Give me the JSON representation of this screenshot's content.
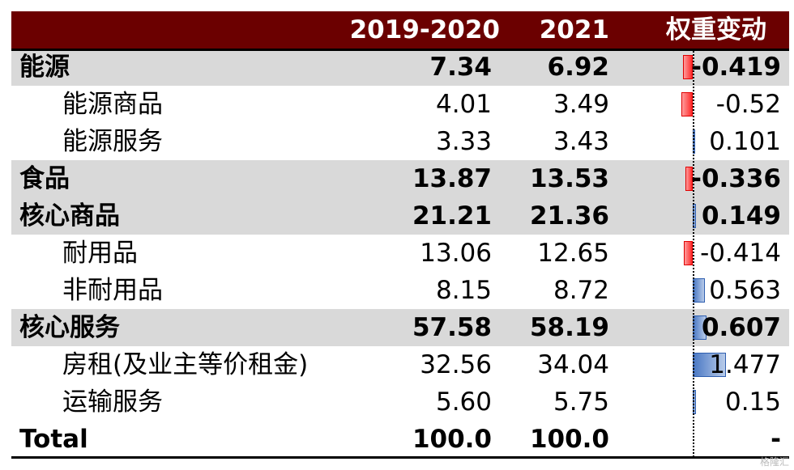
{
  "header": {
    "col1": "2019-2020",
    "col2": "2021",
    "col3": "权重变动"
  },
  "watermark": "格隆汇",
  "chart_data": {
    "type": "table",
    "columns": [
      "2019-2020",
      "2021",
      "权重变动"
    ],
    "rows": [
      {
        "name": "能源",
        "v1": "7.34",
        "v2": "6.92",
        "change": -0.419,
        "change_label": "-0.419",
        "level": "main",
        "shaded": true
      },
      {
        "name": "能源商品",
        "v1": "4.01",
        "v2": "3.49",
        "change": -0.52,
        "change_label": "-0.52",
        "level": "sub",
        "shaded": false
      },
      {
        "name": "能源服务",
        "v1": "3.33",
        "v2": "3.43",
        "change": 0.101,
        "change_label": "0.101",
        "level": "sub",
        "shaded": false
      },
      {
        "name": "食品",
        "v1": "13.87",
        "v2": "13.53",
        "change": -0.336,
        "change_label": "-0.336",
        "level": "main",
        "shaded": true
      },
      {
        "name": "核心商品",
        "v1": "21.21",
        "v2": "21.36",
        "change": 0.149,
        "change_label": "0.149",
        "level": "main",
        "shaded": true
      },
      {
        "name": "耐用品",
        "v1": "13.06",
        "v2": "12.65",
        "change": -0.414,
        "change_label": "-0.414",
        "level": "sub",
        "shaded": false
      },
      {
        "name": "非耐用品",
        "v1": "8.15",
        "v2": "8.72",
        "change": 0.563,
        "change_label": "0.563",
        "level": "sub",
        "shaded": false
      },
      {
        "name": "核心服务",
        "v1": "57.58",
        "v2": "58.19",
        "change": 0.607,
        "change_label": "0.607",
        "level": "main",
        "shaded": true
      },
      {
        "name": "房租(及业主等价租金)",
        "v1": "32.56",
        "v2": "34.04",
        "change": 1.477,
        "change_label": "1.477",
        "level": "sub",
        "shaded": false
      },
      {
        "name": "运输服务",
        "v1": "5.60",
        "v2": "5.75",
        "change": 0.15,
        "change_label": "0.15",
        "level": "sub",
        "shaded": false
      },
      {
        "name": "Total",
        "v1": "100.0",
        "v2": "100.0",
        "change": 0,
        "change_label": "-",
        "level": "main",
        "shaded": false
      }
    ],
    "colors": {
      "header_bg": "#6b0000",
      "negative": "#ff2a2a",
      "positive": "#4a78c4",
      "shaded_row": "#d9d9d9"
    }
  }
}
